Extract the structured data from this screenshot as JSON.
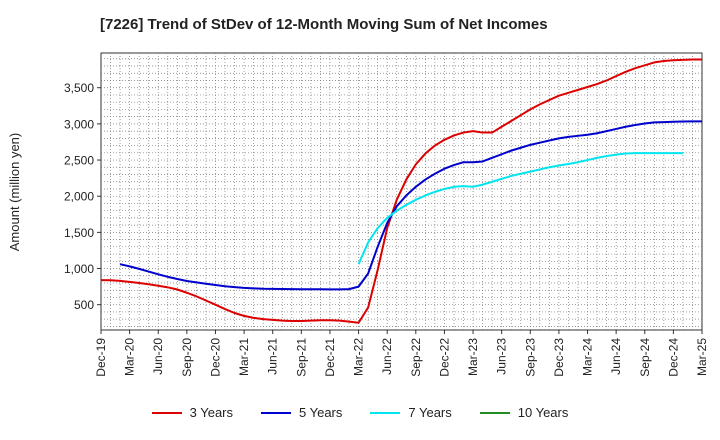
{
  "chart_data": {
    "type": "line",
    "title": "[7226]  Trend of StDev of 12-Month Moving Sum of Net Incomes",
    "ylabel": "Amount (million yen)",
    "xlabel": "",
    "ylim": [
      150,
      3980
    ],
    "yticks": [
      500,
      1000,
      1500,
      2000,
      2500,
      3000,
      3500
    ],
    "ytick_labels": [
      "500",
      "1,000",
      "1,500",
      "2,000",
      "2,500",
      "3,000",
      "3,500"
    ],
    "xticks": [
      "Dec-19",
      "Mar-20",
      "Jun-20",
      "Sep-20",
      "Dec-20",
      "Mar-21",
      "Jun-21",
      "Sep-21",
      "Dec-21",
      "Mar-22",
      "Jun-22",
      "Sep-22",
      "Dec-22",
      "Mar-23",
      "Jun-23",
      "Sep-23",
      "Dec-23",
      "Mar-24",
      "Jun-24",
      "Sep-24",
      "Dec-24",
      "Mar-25"
    ],
    "grid": true,
    "legend_position": "bottom",
    "series": [
      {
        "name": "3 Years",
        "color": "#dd0000",
        "start_index": 0,
        "values": [
          840,
          838,
          830,
          815,
          800,
          782,
          762,
          740,
          710,
          665,
          615,
          558,
          500,
          440,
          385,
          345,
          318,
          300,
          290,
          280,
          275,
          275,
          280,
          285,
          285,
          280,
          265,
          250,
          460,
          980,
          1560,
          1950,
          2230,
          2440,
          2590,
          2700,
          2780,
          2840,
          2880,
          2900,
          2880,
          2880,
          2960,
          3040,
          3120,
          3200,
          3270,
          3330,
          3390,
          3430,
          3470,
          3510,
          3550,
          3600,
          3660,
          3720,
          3770,
          3810,
          3850,
          3870,
          3880,
          3885,
          3890,
          3890
        ]
      },
      {
        "name": "5 Years",
        "color": "#0000cc",
        "start_index": 2,
        "values": [
          1060,
          1030,
          995,
          958,
          920,
          885,
          855,
          828,
          808,
          790,
          772,
          755,
          742,
          732,
          725,
          720,
          718,
          716,
          715,
          714,
          713,
          713,
          712,
          712,
          715,
          750,
          930,
          1300,
          1630,
          1860,
          2010,
          2130,
          2230,
          2310,
          2380,
          2430,
          2470,
          2470,
          2480,
          2530,
          2580,
          2630,
          2670,
          2710,
          2740,
          2770,
          2800,
          2820,
          2835,
          2850,
          2870,
          2900,
          2930,
          2960,
          2985,
          3005,
          3020,
          3025,
          3030,
          3032,
          3034,
          3035
        ]
      },
      {
        "name": "7 Years",
        "color": "#00e5ee",
        "start_index": 27,
        "values": [
          1060,
          1360,
          1560,
          1700,
          1800,
          1880,
          1950,
          2010,
          2060,
          2100,
          2130,
          2140,
          2130,
          2160,
          2200,
          2240,
          2280,
          2310,
          2340,
          2370,
          2400,
          2425,
          2445,
          2470,
          2500,
          2530,
          2555,
          2575,
          2590,
          2595,
          2595,
          2595,
          2595,
          2595,
          2595
        ]
      },
      {
        "name": "10 Years",
        "color": "#228b22",
        "start_index": 0,
        "values": []
      }
    ]
  }
}
